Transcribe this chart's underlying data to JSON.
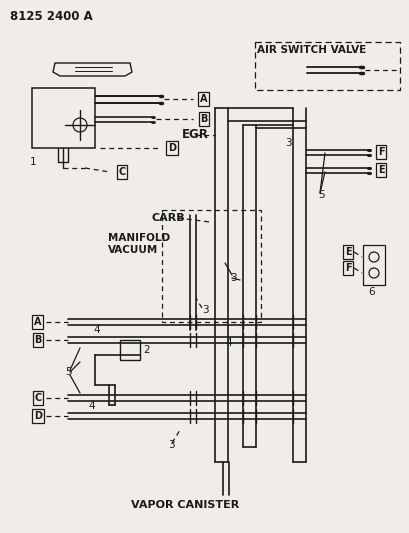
{
  "title": "8125 2400 A",
  "bg": "#f0ede8",
  "lc": "#1a1a1a",
  "egr_label": "EGR",
  "carb_label": "CARB",
  "manifold_label_1": "MANIFOLD",
  "manifold_label_2": "VACUUM",
  "asv_label": "AIR SWITCH VALVE",
  "vc_label": "VAPOR CANISTER",
  "num1": "1",
  "num2": "2",
  "num3": "3",
  "num4": "4",
  "num5": "5",
  "num6": "6"
}
